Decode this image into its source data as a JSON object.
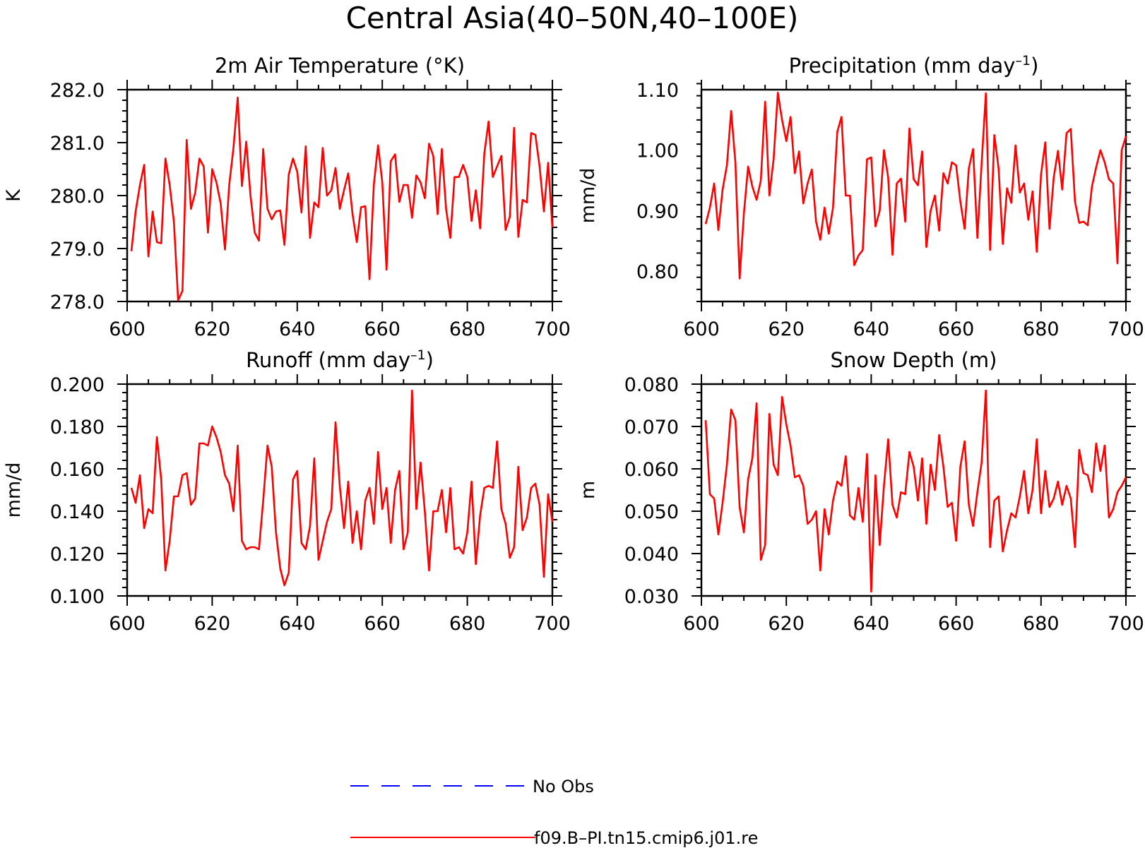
{
  "figure_title": "Central Asia(40–50N,40–100E)",
  "legend": [
    {
      "label": "No Obs",
      "color": "#0000ff",
      "dash": "dashed"
    },
    {
      "label": "f09.B–PI.tn15.cmip6.j01.re",
      "color": "#ff0000",
      "dash": "solid"
    }
  ],
  "chart_data": [
    {
      "type": "line",
      "title": "2m Air Temperature (°K)",
      "xlabel": "",
      "ylabel": "K",
      "xlim": [
        600,
        700
      ],
      "ylim": [
        278,
        282
      ],
      "xticks": [
        600,
        620,
        640,
        660,
        680,
        700
      ],
      "xtick_labels": [
        "600",
        "620",
        "640",
        "660",
        "680",
        "700"
      ],
      "yticks": [
        278,
        279,
        280,
        281,
        282
      ],
      "ytick_labels": [
        "278.0",
        "279.0",
        "280.0",
        "281.0",
        "282.0"
      ],
      "series": [
        {
          "color": "#ff0000",
          "x_start": 601,
          "x_step": 1,
          "values": [
            278.95,
            279.7,
            280.2,
            280.58,
            278.85,
            279.7,
            279.12,
            279.1,
            280.7,
            280.2,
            279.5,
            278.02,
            278.2,
            281.05,
            279.75,
            280.05,
            280.7,
            280.55,
            279.3,
            280.5,
            280.25,
            279.85,
            278.98,
            280.2,
            280.9,
            281.85,
            280.18,
            281.02,
            280.0,
            279.3,
            279.15,
            280.88,
            279.75,
            279.55,
            279.7,
            279.72,
            279.07,
            280.4,
            280.7,
            280.45,
            279.68,
            280.93,
            279.2,
            279.87,
            279.78,
            280.9,
            280.0,
            280.1,
            280.52,
            279.75,
            280.1,
            280.42,
            279.65,
            279.12,
            279.78,
            279.8,
            278.42,
            280.2,
            280.95,
            280.25,
            278.6,
            280.65,
            280.78,
            279.88,
            280.2,
            280.2,
            279.58,
            280.38,
            280.25,
            279.95,
            280.98,
            280.75,
            279.65,
            280.88,
            279.75,
            279.2,
            280.35,
            280.35,
            280.58,
            280.35,
            279.52,
            280.1,
            279.38,
            280.8,
            281.4,
            280.35,
            280.55,
            280.75,
            279.35,
            279.6,
            281.28,
            279.22,
            279.92,
            279.87,
            281.18,
            281.15,
            280.55,
            279.7,
            280.62,
            279.4
          ]
        }
      ]
    },
    {
      "type": "line",
      "title": "Precipitation (mm day–1)",
      "xlabel": "",
      "ylabel": "mm/d",
      "xlim": [
        600,
        700
      ],
      "ylim": [
        0.75,
        1.1
      ],
      "xticks": [
        600,
        620,
        640,
        660,
        680,
        700
      ],
      "xtick_labels": [
        "600",
        "620",
        "640",
        "660",
        "680",
        "700"
      ],
      "yticks": [
        0.8,
        0.9,
        1.0,
        1.1
      ],
      "ytick_labels": [
        "0.80",
        "0.90",
        "1.00",
        "1.10"
      ],
      "series": [
        {
          "color": "#ff0000",
          "x_start": 601,
          "x_step": 1,
          "values": [
            0.878,
            0.905,
            0.945,
            0.868,
            0.935,
            0.975,
            1.065,
            0.98,
            0.788,
            0.895,
            0.973,
            0.94,
            0.918,
            0.95,
            1.08,
            0.925,
            0.985,
            1.095,
            1.05,
            1.015,
            1.055,
            0.962,
            0.998,
            0.912,
            0.945,
            0.968,
            0.882,
            0.852,
            0.905,
            0.862,
            0.905,
            1.03,
            1.055,
            0.925,
            0.925,
            0.81,
            0.826,
            0.835,
            0.985,
            0.988,
            0.874,
            0.9,
            1.0,
            0.955,
            0.827,
            0.945,
            0.953,
            0.882,
            1.036,
            0.952,
            0.942,
            0.998,
            0.84,
            0.9,
            0.925,
            0.867,
            0.962,
            0.945,
            0.98,
            0.975,
            0.915,
            0.87,
            0.97,
            1.002,
            0.855,
            0.978,
            1.094,
            0.835,
            1.025,
            0.97,
            0.845,
            0.937,
            0.913,
            1.008,
            0.93,
            0.945,
            0.885,
            0.932,
            0.832,
            0.96,
            1.013,
            0.87,
            0.955,
            0.999,
            0.935,
            1.028,
            1.035,
            0.915,
            0.88,
            0.882,
            0.876,
            0.94,
            0.972,
            1.0,
            0.98,
            0.952,
            0.945,
            0.813,
            1.0,
            1.023
          ]
        }
      ]
    },
    {
      "type": "line",
      "title": "Runoff (mm day–1)",
      "xlabel": "",
      "ylabel": "mm/d",
      "xlim": [
        600,
        700
      ],
      "ylim": [
        0.1,
        0.2
      ],
      "xticks": [
        600,
        620,
        640,
        660,
        680,
        700
      ],
      "xtick_labels": [
        "600",
        "620",
        "640",
        "660",
        "680",
        "700"
      ],
      "yticks": [
        0.1,
        0.12,
        0.14,
        0.16,
        0.18,
        0.2
      ],
      "ytick_labels": [
        "0.100",
        "0.120",
        "0.140",
        "0.160",
        "0.180",
        "0.200"
      ],
      "series": [
        {
          "color": "#ff0000",
          "x_start": 601,
          "x_step": 1,
          "values": [
            0.151,
            0.144,
            0.157,
            0.132,
            0.141,
            0.139,
            0.175,
            0.155,
            0.112,
            0.126,
            0.147,
            0.147,
            0.157,
            0.158,
            0.143,
            0.146,
            0.172,
            0.172,
            0.171,
            0.18,
            0.175,
            0.168,
            0.157,
            0.153,
            0.14,
            0.171,
            0.126,
            0.122,
            0.123,
            0.123,
            0.122,
            0.145,
            0.171,
            0.161,
            0.13,
            0.113,
            0.105,
            0.111,
            0.155,
            0.159,
            0.125,
            0.122,
            0.133,
            0.165,
            0.117,
            0.126,
            0.135,
            0.141,
            0.182,
            0.152,
            0.132,
            0.154,
            0.125,
            0.14,
            0.122,
            0.145,
            0.151,
            0.134,
            0.168,
            0.141,
            0.151,
            0.125,
            0.15,
            0.159,
            0.122,
            0.13,
            0.197,
            0.141,
            0.163,
            0.14,
            0.112,
            0.14,
            0.14,
            0.15,
            0.13,
            0.151,
            0.122,
            0.123,
            0.12,
            0.13,
            0.154,
            0.115,
            0.138,
            0.151,
            0.152,
            0.151,
            0.173,
            0.141,
            0.134,
            0.118,
            0.123,
            0.161,
            0.131,
            0.137,
            0.151,
            0.153,
            0.143,
            0.109,
            0.148,
            0.135
          ]
        }
      ]
    },
    {
      "type": "line",
      "title": "Snow Depth (m)",
      "xlabel": "",
      "ylabel": "m",
      "xlim": [
        600,
        700
      ],
      "ylim": [
        0.03,
        0.08
      ],
      "xticks": [
        600,
        620,
        640,
        660,
        680,
        700
      ],
      "xtick_labels": [
        "600",
        "620",
        "640",
        "660",
        "680",
        "700"
      ],
      "yticks": [
        0.03,
        0.04,
        0.05,
        0.06,
        0.07,
        0.08
      ],
      "ytick_labels": [
        "0.030",
        "0.040",
        "0.050",
        "0.060",
        "0.070",
        "0.080"
      ],
      "series": [
        {
          "color": "#ff0000",
          "x_start": 601,
          "x_step": 1,
          "values": [
            0.0715,
            0.054,
            0.053,
            0.0445,
            0.052,
            0.061,
            0.074,
            0.0715,
            0.051,
            0.045,
            0.0575,
            0.0625,
            0.0755,
            0.0385,
            0.042,
            0.073,
            0.061,
            0.0585,
            0.077,
            0.0705,
            0.0655,
            0.058,
            0.0585,
            0.056,
            0.047,
            0.048,
            0.05,
            0.036,
            0.0505,
            0.0445,
            0.0525,
            0.057,
            0.056,
            0.063,
            0.049,
            0.048,
            0.0555,
            0.0475,
            0.0635,
            0.031,
            0.0585,
            0.042,
            0.056,
            0.067,
            0.0515,
            0.0485,
            0.0545,
            0.054,
            0.064,
            0.0605,
            0.0525,
            0.0625,
            0.047,
            0.061,
            0.055,
            0.068,
            0.0605,
            0.051,
            0.052,
            0.043,
            0.0605,
            0.0665,
            0.0515,
            0.0465,
            0.0545,
            0.0615,
            0.0785,
            0.0415,
            0.0525,
            0.0535,
            0.0405,
            0.0455,
            0.0495,
            0.0485,
            0.0535,
            0.0595,
            0.0495,
            0.055,
            0.067,
            0.0495,
            0.0595,
            0.051,
            0.053,
            0.057,
            0.0515,
            0.056,
            0.053,
            0.0415,
            0.0645,
            0.059,
            0.0585,
            0.0545,
            0.066,
            0.0595,
            0.0655,
            0.0485,
            0.0505,
            0.0545,
            0.056,
            0.058
          ]
        }
      ]
    }
  ]
}
